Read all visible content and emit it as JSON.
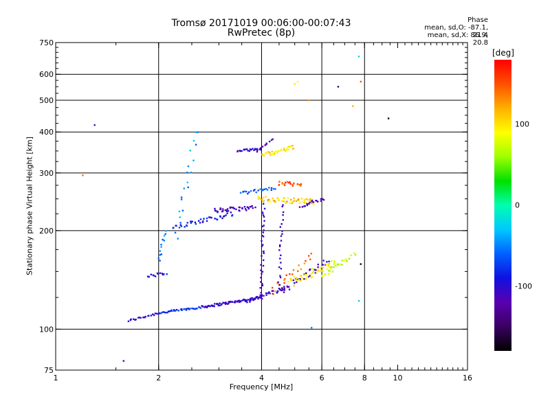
{
  "chart_data": {
    "type": "scatter",
    "title": "Tromsø 20171019 00:06:00-00:07:43",
    "subtitle": "RwPretec (8p)",
    "xlabel": "Frequency [MHz]",
    "ylabel": "Stationary phase Virtual Height [km]",
    "x_scale": "log2",
    "y_scale": "log",
    "xlim": [
      1,
      16
    ],
    "ylim": [
      75,
      750
    ],
    "x_ticks": [
      "1",
      "2",
      "4",
      "6",
      "8",
      "10",
      "16"
    ],
    "y_ticks": [
      "75",
      "100",
      "200",
      "300",
      "400",
      "500",
      "600",
      "750"
    ],
    "grid": true,
    "phase_stats": {
      "heading": "Phase",
      "o_line": "mean, sd,O: -87.1, 21.4",
      "x_line": "mean, sd,X: 86.9, 20.8"
    },
    "colorbar": {
      "unit": "[deg]",
      "range": [
        -180,
        180
      ],
      "ticks": [
        {
          "value": 100,
          "label": "100"
        },
        {
          "value": 0,
          "label": "0"
        },
        {
          "value": -100,
          "label": "-100"
        }
      ],
      "colors": [
        "#000000",
        "#3a0060",
        "#5a00b0",
        "#1010e0",
        "#0060ff",
        "#00c8ff",
        "#00ffb0",
        "#00e000",
        "#a0ff00",
        "#ffff00",
        "#ffb000",
        "#ff5000",
        "#ff0000"
      ]
    },
    "traces": [
      {
        "from": [
          1.63,
          106
        ],
        "to": [
          2.0,
          112
        ],
        "phase": -100,
        "n": 20,
        "jitter": 0.01
      },
      {
        "from": [
          2.0,
          112
        ],
        "to": [
          2.7,
          117
        ],
        "phase": -80,
        "n": 40,
        "jitter": 0.01
      },
      {
        "from": [
          2.7,
          117
        ],
        "to": [
          4.0,
          125
        ],
        "phase": -105,
        "n": 70,
        "jitter": 0.012
      },
      {
        "from": [
          3.6,
          122
        ],
        "to": [
          4.7,
          133
        ],
        "phase": -110,
        "n": 30,
        "jitter": 0.02
      },
      {
        "from": [
          4.5,
          130
        ],
        "to": [
          6.3,
          162
        ],
        "phase": -110,
        "n": 35,
        "jitter": 0.03
      },
      {
        "from": [
          4.8,
          138
        ],
        "to": [
          6.6,
          160
        ],
        "phase": 90,
        "n": 45,
        "jitter": 0.035
      },
      {
        "from": [
          6.0,
          145
        ],
        "to": [
          7.5,
          170
        ],
        "phase": 75,
        "n": 25,
        "jitter": 0.02
      },
      {
        "from": [
          4.3,
          130
        ],
        "to": [
          5.6,
          168
        ],
        "phase": 140,
        "n": 20,
        "jitter": 0.035
      },
      {
        "from": [
          4.0,
          125
        ],
        "to": [
          4.05,
          245
        ],
        "phase": -110,
        "n": 35,
        "jitter": 0.02
      },
      {
        "from": [
          4.5,
          130
        ],
        "to": [
          4.6,
          240
        ],
        "phase": -110,
        "n": 25,
        "jitter": 0.02
      },
      {
        "from": [
          1.85,
          145
        ],
        "to": [
          2.1,
          148
        ],
        "phase": -90,
        "n": 14,
        "jitter": 0.015
      },
      {
        "from": [
          2.0,
          160
        ],
        "to": [
          2.1,
          200
        ],
        "phase": -55,
        "n": 12,
        "jitter": 0.02
      },
      {
        "from": [
          2.25,
          190
        ],
        "to": [
          2.6,
          410
        ],
        "phase": -45,
        "n": 20,
        "jitter": 0.04
      },
      {
        "from": [
          2.2,
          205
        ],
        "to": [
          3.3,
          225
        ],
        "phase": -85,
        "n": 40,
        "jitter": 0.02
      },
      {
        "from": [
          2.9,
          230
        ],
        "to": [
          3.8,
          235
        ],
        "phase": -115,
        "n": 40,
        "jitter": 0.02
      },
      {
        "from": [
          3.5,
          260
        ],
        "to": [
          4.4,
          270
        ],
        "phase": -65,
        "n": 22,
        "jitter": 0.015
      },
      {
        "from": [
          3.9,
          250
        ],
        "to": [
          5.7,
          245
        ],
        "phase": 110,
        "n": 60,
        "jitter": 0.025
      },
      {
        "from": [
          4.5,
          280
        ],
        "to": [
          5.2,
          275
        ],
        "phase": 155,
        "n": 20,
        "jitter": 0.02
      },
      {
        "from": [
          5.2,
          238
        ],
        "to": [
          6.1,
          250
        ],
        "phase": -115,
        "n": 18,
        "jitter": 0.015
      },
      {
        "from": [
          3.4,
          350
        ],
        "to": [
          4.0,
          355
        ],
        "phase": -105,
        "n": 22,
        "jitter": 0.01
      },
      {
        "from": [
          4.0,
          340
        ],
        "to": [
          5.0,
          360
        ],
        "phase": 100,
        "n": 35,
        "jitter": 0.02
      },
      {
        "from": [
          3.9,
          350
        ],
        "to": [
          4.3,
          380
        ],
        "phase": -115,
        "n": 10,
        "jitter": 0.015
      }
    ],
    "scatter_points": [
      {
        "x": 1.3,
        "y": 420,
        "phase": -110
      },
      {
        "x": 1.2,
        "y": 295,
        "phase": 140
      },
      {
        "x": 1.58,
        "y": 80,
        "phase": -110
      },
      {
        "x": 5.0,
        "y": 560,
        "phase": 100
      },
      {
        "x": 5.1,
        "y": 570,
        "phase": 90
      },
      {
        "x": 5.5,
        "y": 500,
        "phase": 130
      },
      {
        "x": 6.7,
        "y": 550,
        "phase": -150
      },
      {
        "x": 7.4,
        "y": 480,
        "phase": 120
      },
      {
        "x": 7.8,
        "y": 570,
        "phase": 150
      },
      {
        "x": 7.7,
        "y": 680,
        "phase": -20
      },
      {
        "x": 7.8,
        "y": 158,
        "phase": -170
      },
      {
        "x": 7.7,
        "y": 122,
        "phase": -30
      },
      {
        "x": 9.4,
        "y": 440,
        "phase": -170
      },
      {
        "x": 5.6,
        "y": 101,
        "phase": -50
      }
    ]
  }
}
